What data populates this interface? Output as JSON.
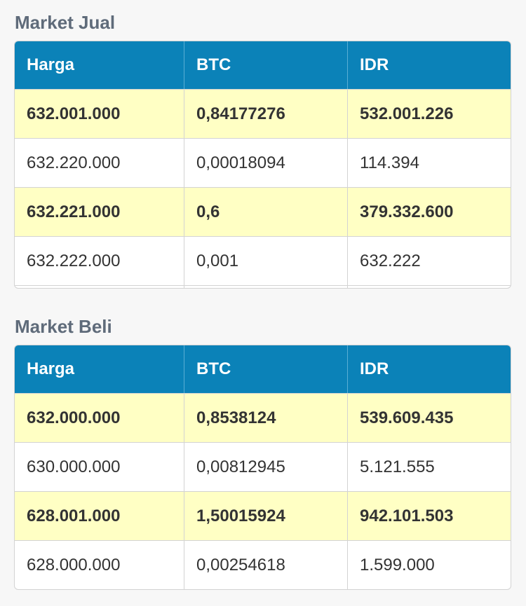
{
  "sell": {
    "title": "Market Jual",
    "headers": [
      "Harga",
      "BTC",
      "IDR"
    ],
    "rows": [
      {
        "harga": "632.001.000",
        "btc": "0,84177276",
        "idr": "532.001.226"
      },
      {
        "harga": "632.220.000",
        "btc": "0,00018094",
        "idr": "114.394"
      },
      {
        "harga": "632.221.000",
        "btc": "0,6",
        "idr": "379.332.600"
      },
      {
        "harga": "632.222.000",
        "btc": "0,001",
        "idr": "632.222"
      }
    ]
  },
  "buy": {
    "title": "Market Beli",
    "headers": [
      "Harga",
      "BTC",
      "IDR"
    ],
    "rows": [
      {
        "harga": "632.000.000",
        "btc": "0,8538124",
        "idr": "539.609.435"
      },
      {
        "harga": "630.000.000",
        "btc": "0,00812945",
        "idr": "5.121.555"
      },
      {
        "harga": "628.001.000",
        "btc": "1,50015924",
        "idr": "942.101.503"
      },
      {
        "harga": "628.000.000",
        "btc": "0,00254618",
        "idr": "1.599.000"
      }
    ]
  },
  "colors": {
    "header_bg": "#0b82b8",
    "highlight_row": "#ffffc4",
    "title_text": "#5f6b7a"
  }
}
